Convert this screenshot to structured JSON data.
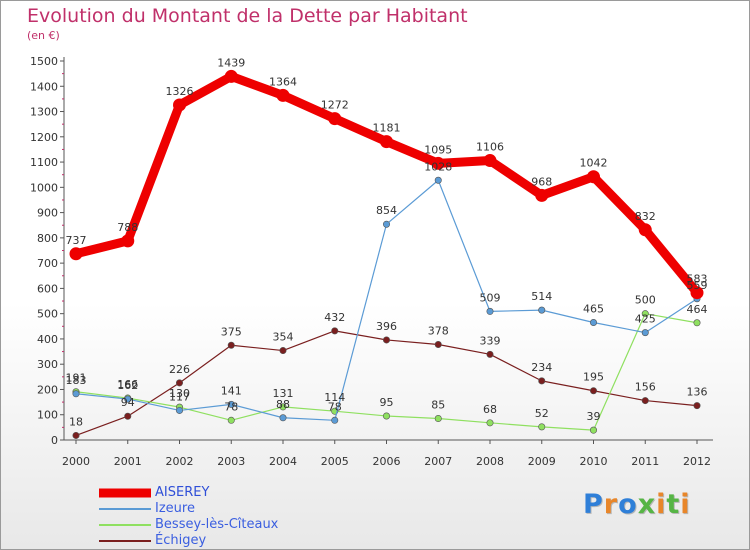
{
  "title": "Evolution du Montant de la Dette par Habitant",
  "unit": "(en €)",
  "logo": {
    "text": "Proxiti",
    "colors": [
      "#2f7fd8",
      "#e8862a",
      "#2f7fd8",
      "#56b545",
      "#e8862a",
      "#56b545",
      "#e8862a"
    ]
  },
  "chart_data": {
    "type": "line",
    "x": [
      "2000",
      "2001",
      "2002",
      "2003",
      "2004",
      "2005",
      "2006",
      "2007",
      "2008",
      "2009",
      "2010",
      "2011",
      "2012"
    ],
    "ylim": [
      0,
      1500
    ],
    "yticks": [
      0,
      100,
      200,
      300,
      400,
      500,
      600,
      700,
      800,
      900,
      1000,
      1100,
      1200,
      1300,
      1400,
      1500
    ],
    "grid": false,
    "legend_position": "bottom-left",
    "series": [
      {
        "name": "AISEREY",
        "color": "#ee0000",
        "values": [
          737,
          788,
          1326,
          1439,
          1364,
          1272,
          1181,
          1095,
          1106,
          968,
          1042,
          832,
          583
        ]
      },
      {
        "name": "Izeure",
        "color": "#5b9bd5",
        "values": [
          183,
          162,
          117,
          141,
          88,
          78,
          854,
          1028,
          509,
          514,
          465,
          425,
          559
        ]
      },
      {
        "name": "Bessey-lès-Cîteaux",
        "color": "#8fe060",
        "values": [
          191,
          166,
          130,
          78,
          131,
          114,
          95,
          85,
          68,
          52,
          39,
          500,
          464
        ]
      },
      {
        "name": "Échigey",
        "color": "#7a1f1f",
        "values": [
          18,
          94,
          226,
          375,
          354,
          432,
          396,
          378,
          339,
          234,
          195,
          156,
          136
        ]
      }
    ]
  }
}
